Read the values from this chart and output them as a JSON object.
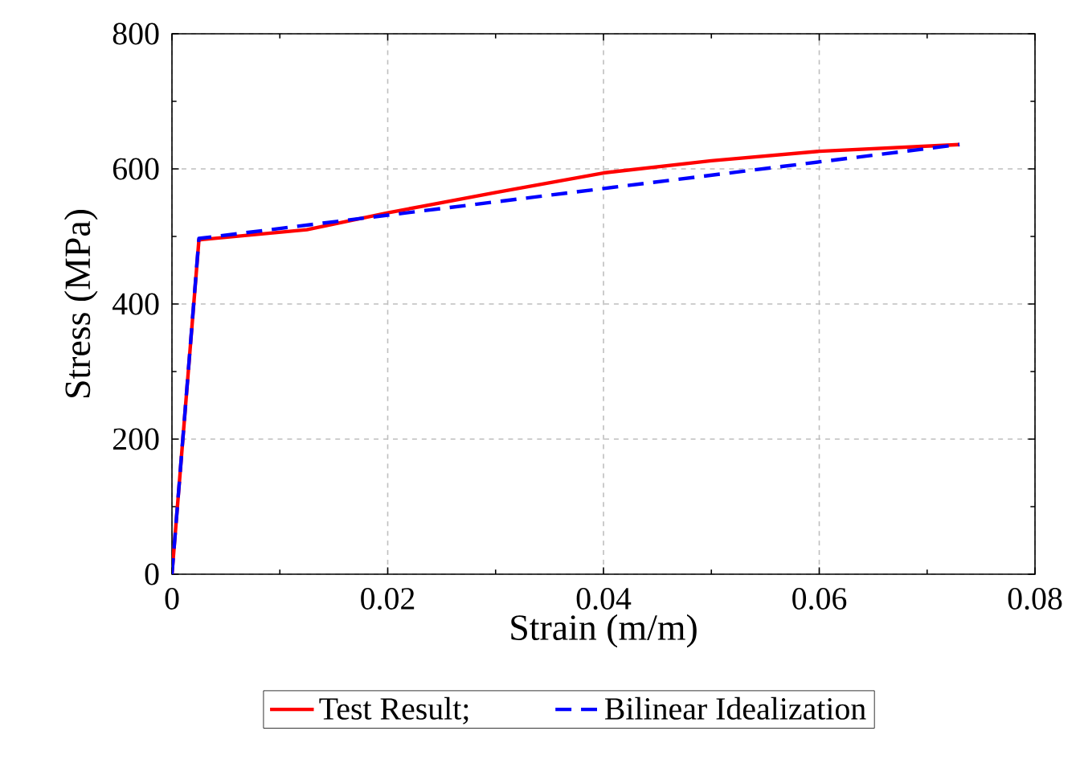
{
  "chart_data": {
    "type": "line",
    "xlabel": "Strain (m/m)",
    "ylabel": "Stress (MPa)",
    "xlim": [
      0,
      0.08
    ],
    "ylim": [
      0,
      800
    ],
    "xticks": [
      0,
      0.02,
      0.04,
      0.06,
      0.08
    ],
    "yticks": [
      0,
      200,
      400,
      600,
      800
    ],
    "grid": true,
    "legend": "bottom",
    "series": [
      {
        "name": "Test Result;",
        "color": "#ff0000",
        "line_style": "solid",
        "x": [
          0,
          0.0025,
          0.0125,
          0.02,
          0.03,
          0.04,
          0.05,
          0.06,
          0.073
        ],
        "values": [
          0,
          495,
          510,
          535,
          565,
          594,
          612,
          626,
          636
        ]
      },
      {
        "name": "Bilinear Idealization",
        "color": "#0000ff",
        "line_style": "dashed",
        "x": [
          0,
          0.0025,
          0.073
        ],
        "values": [
          0,
          497,
          636
        ]
      }
    ]
  }
}
